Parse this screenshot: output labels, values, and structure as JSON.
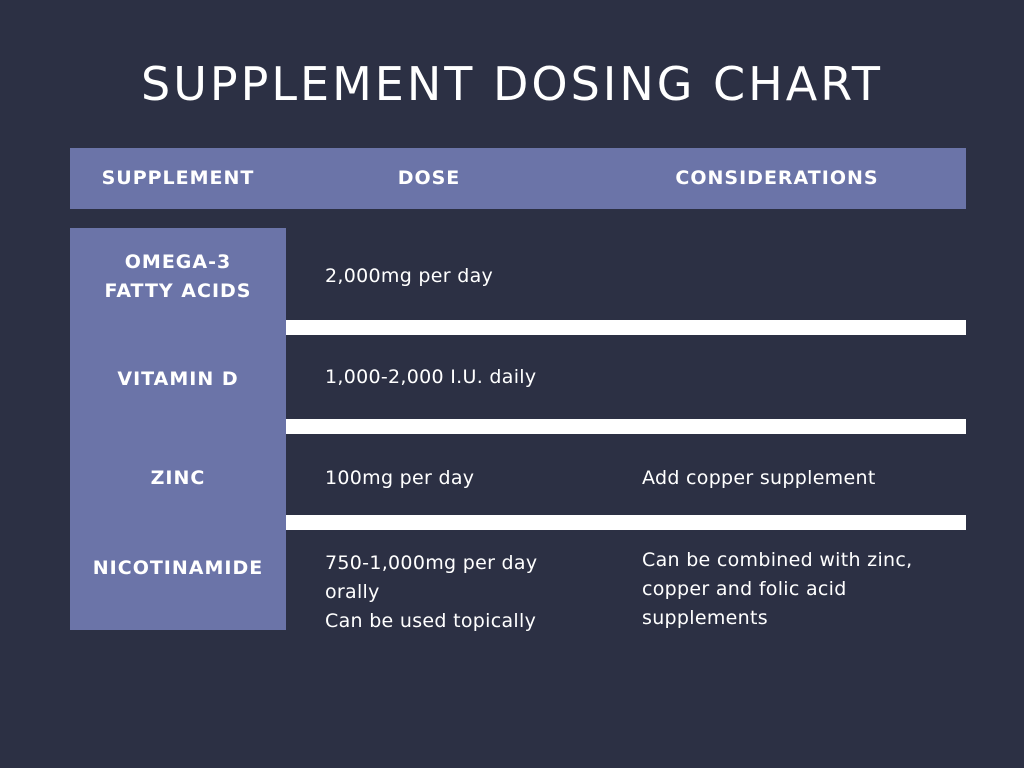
{
  "title": "SUPPLEMENT DOSING CHART",
  "headers": {
    "supplement": "SUPPLEMENT",
    "dose": "DOSE",
    "considerations": "CONSIDERATIONS"
  },
  "rows": [
    {
      "supplement_lines": [
        "OMEGA-3",
        "FATTY ACIDS"
      ],
      "dose_lines": [
        "2,000mg per day"
      ],
      "considerations_lines": []
    },
    {
      "supplement_lines": [
        "VITAMIN D"
      ],
      "dose_lines": [
        "1,000-2,000 I.U. daily"
      ],
      "considerations_lines": []
    },
    {
      "supplement_lines": [
        "ZINC"
      ],
      "dose_lines": [
        "100mg per day"
      ],
      "considerations_lines": [
        "Add copper supplement"
      ]
    },
    {
      "supplement_lines": [
        "NICOTINAMIDE"
      ],
      "dose_lines": [
        "750-1,000mg per day",
        "orally",
        "Can be used topically"
      ],
      "considerations_lines": [
        "Can be combined with zinc,",
        "copper and folic acid",
        "supplements"
      ]
    }
  ],
  "colors": {
    "background": "#2c3044",
    "accent": "#6b74a8",
    "divider": "#ffffff",
    "text": "#ffffff"
  }
}
